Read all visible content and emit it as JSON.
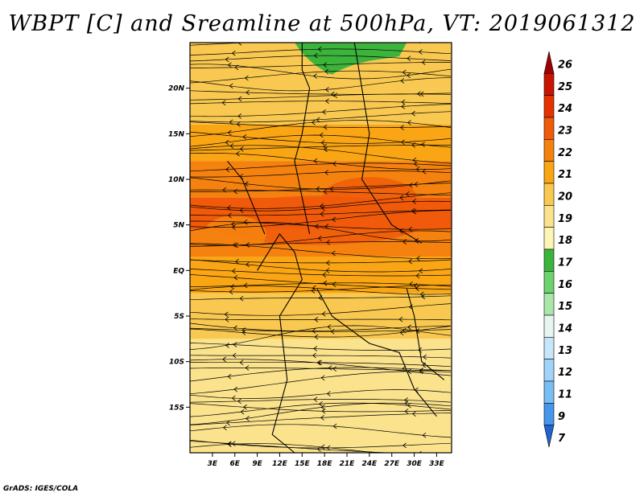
{
  "chart_data": {
    "type": "heatmap",
    "title": "WBPT [C] and Sreamline at 500hPa, VT: 2019061312",
    "variable": "WBPT [C]",
    "level": "500hPa",
    "valid_time": "2019061312",
    "x_axis": {
      "ticks": [
        "3E",
        "6E",
        "9E",
        "12E",
        "15E",
        "18E",
        "21E",
        "24E",
        "27E",
        "30E",
        "33E"
      ],
      "tick_values": [
        3,
        6,
        9,
        12,
        15,
        18,
        21,
        24,
        27,
        30,
        33
      ],
      "range": [
        0,
        35
      ]
    },
    "y_axis": {
      "ticks": [
        "20N",
        "15N",
        "10N",
        "5N",
        "EQ",
        "5S",
        "10S",
        "15S"
      ],
      "tick_values": [
        20,
        15,
        10,
        5,
        0,
        -5,
        -10,
        -15
      ],
      "range": [
        -20,
        25
      ]
    },
    "colorbar": {
      "labels": [
        "26",
        "25",
        "24",
        "23",
        "22",
        "21",
        "20",
        "19",
        "18",
        "17",
        "16",
        "15",
        "14",
        "13",
        "12",
        "11",
        "9",
        "7"
      ],
      "colors": [
        "#a00000",
        "#c81400",
        "#e63200",
        "#f05a0a",
        "#f5820f",
        "#faa514",
        "#f8c850",
        "#fbe28c",
        "#fcf5b4",
        "#3cb43c",
        "#6ed26e",
        "#aae6aa",
        "#e6f5f0",
        "#c8e6fa",
        "#a0d2fa",
        "#78bef5",
        "#4696eb",
        "#1e64d2"
      ]
    },
    "field_bands": [
      {
        "lat": 22,
        "value": 19.5
      },
      {
        "lat": 18,
        "value": 20
      },
      {
        "lat": 14,
        "value": 20.5
      },
      {
        "lat": 10,
        "value": 21.5
      },
      {
        "lat": 6,
        "value": 22.5
      },
      {
        "lat": 3,
        "value": 22
      },
      {
        "lat": 0,
        "value": 20.5
      },
      {
        "lat": -5,
        "value": 19.5
      },
      {
        "lat": -10,
        "value": 19
      },
      {
        "lat": -15,
        "value": 19
      }
    ],
    "footer": "GrADS: IGES/COLA"
  }
}
